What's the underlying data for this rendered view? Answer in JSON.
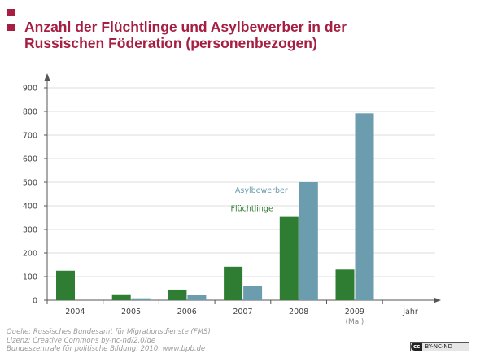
{
  "title_lines": [
    "Anzahl der Flüchtlinge und Asylbewerber in der",
    "Russischen Föderation (personenbezogen)"
  ],
  "source_lines": [
    "Quelle: Russisches Bundesamt für Migrationsdienste (FMS)",
    "Lizenz: Creative Commons by-nc-nd/2.0/de",
    "Bundeszentrale für politische Bildung, 2010, www.bpb.de"
  ],
  "license_badge": {
    "cc": "cc",
    "text": "BY-NC-ND"
  },
  "colors": {
    "accent": "#a61f43",
    "fluechtlinge": "#2e7d32",
    "asylbewerber": "#6b9dae"
  },
  "chart_data": {
    "type": "bar",
    "categories": [
      "2004",
      "2005",
      "2006",
      "2007",
      "2008",
      "2009"
    ],
    "category_sublabels": [
      "",
      "",
      "",
      "",
      "",
      "(Mai)"
    ],
    "x_axis_end_label": "Jahr",
    "series": [
      {
        "name": "Flüchtlinge",
        "values": [
          125,
          25,
          45,
          142,
          353,
          130
        ]
      },
      {
        "name": "Asylbewerber",
        "values": [
          0,
          8,
          22,
          62,
          500,
          792
        ]
      }
    ],
    "yticks": [
      0,
      100,
      200,
      300,
      400,
      500,
      600,
      700,
      800,
      900
    ],
    "ylim": [
      0,
      900
    ],
    "grid": true,
    "title": "",
    "xlabel": "",
    "ylabel": ""
  }
}
